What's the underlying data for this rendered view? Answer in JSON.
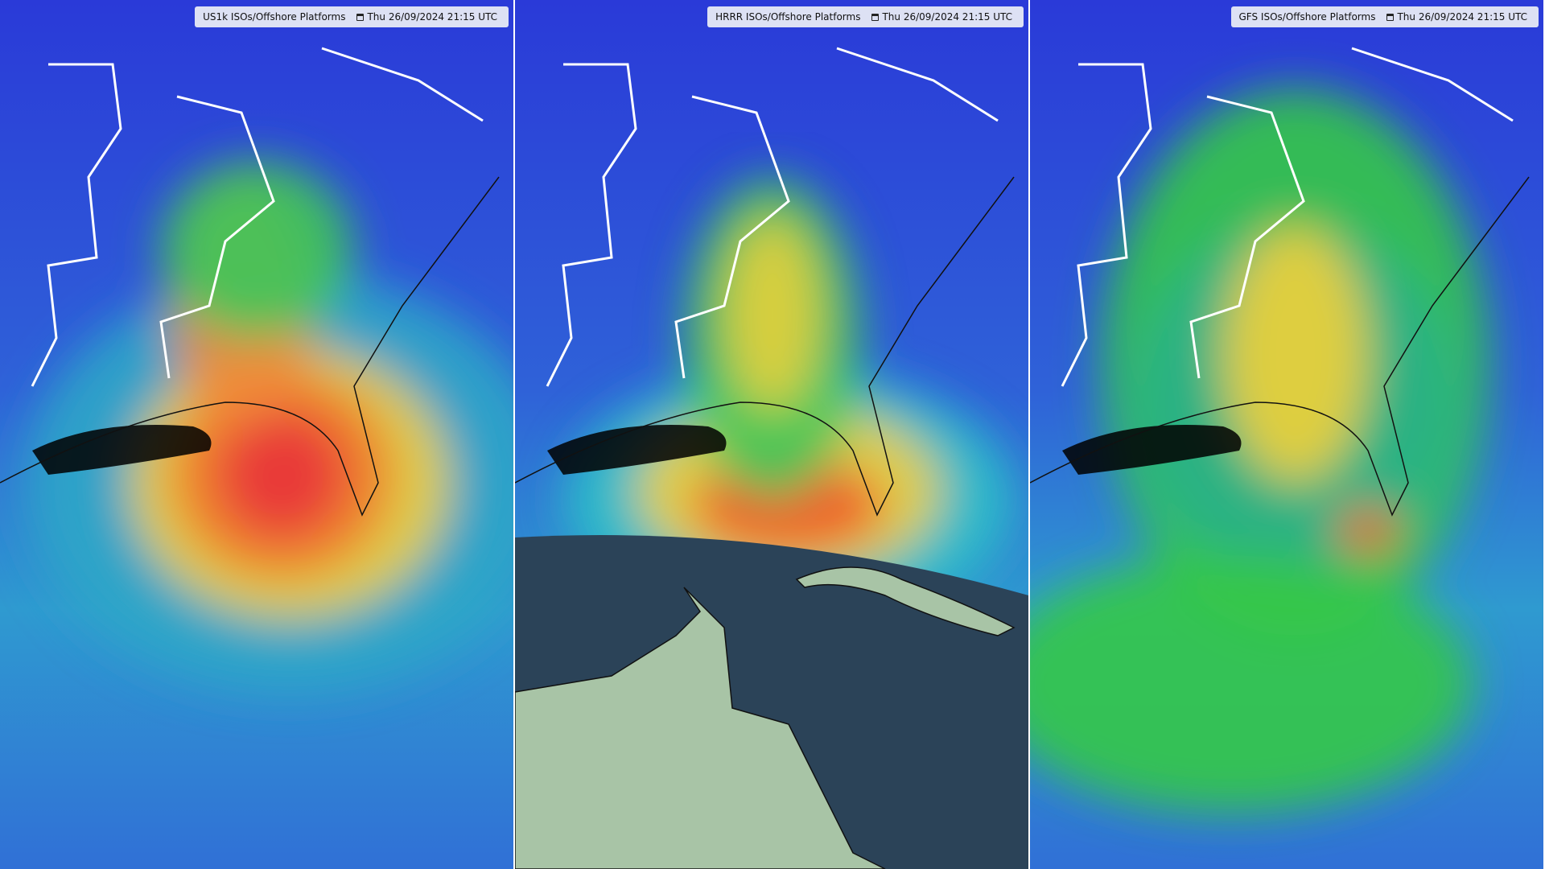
{
  "panels": [
    {
      "label": "US1k ISOs/Offshore Platforms",
      "timestamp": "Thu 26/09/2024 21:15  UTC"
    },
    {
      "label": "HRRR ISOs/Offshore Platforms",
      "timestamp": "Thu 26/09/2024 21:15  UTC"
    },
    {
      "label": "GFS ISOs/Offshore Platforms",
      "timestamp": "Thu 26/09/2024 21:15  UTC"
    }
  ]
}
